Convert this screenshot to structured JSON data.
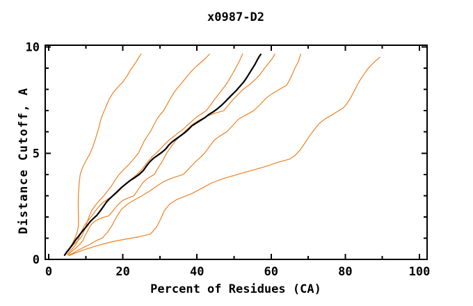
{
  "figure": {
    "background": "#ffffff",
    "axis_color": "#000000"
  },
  "chart_data": {
    "type": "line",
    "title": "x0987-D2",
    "xlabel": "Percent of Residues  (CA)",
    "ylabel": "Distance Cutoff, A",
    "xlim": [
      0,
      100
    ],
    "ylim": [
      0,
      10
    ],
    "x_major_ticks": [
      0,
      20,
      40,
      60,
      80,
      100
    ],
    "x_minor_ticks": [
      10,
      30,
      50,
      70,
      90
    ],
    "y_major_ticks": [
      0,
      5,
      10
    ],
    "y_minor_ticks": [
      1,
      2,
      3,
      4,
      6,
      7,
      8,
      9
    ],
    "grid": false,
    "legend": "none",
    "colors": {
      "orange": "#ee8022",
      "black": "#000000"
    },
    "series": [
      {
        "name": "orange-1",
        "color": "#ee8022",
        "width": 1.2,
        "points": [
          [
            4.6,
            0.28
          ],
          [
            5.4,
            0.45
          ],
          [
            6.1,
            0.62
          ],
          [
            6.7,
            0.85
          ],
          [
            7.2,
            1.05
          ],
          [
            7.7,
            1.3
          ],
          [
            8.0,
            1.55
          ],
          [
            8.05,
            1.85
          ],
          [
            8.0,
            2.2
          ],
          [
            7.95,
            2.6
          ],
          [
            8.0,
            3.0
          ],
          [
            8.15,
            3.4
          ],
          [
            8.3,
            3.7
          ],
          [
            8.5,
            4.0
          ],
          [
            9.2,
            4.35
          ],
          [
            10.1,
            4.65
          ],
          [
            11.2,
            5.0
          ],
          [
            11.9,
            5.3
          ],
          [
            12.5,
            5.6
          ],
          [
            13.1,
            5.95
          ],
          [
            13.6,
            6.25
          ],
          [
            14.0,
            6.55
          ],
          [
            14.5,
            6.8
          ],
          [
            15.0,
            7.0
          ],
          [
            15.7,
            7.3
          ],
          [
            16.5,
            7.6
          ],
          [
            17.6,
            7.9
          ],
          [
            18.9,
            8.15
          ],
          [
            20.0,
            8.35
          ],
          [
            21.2,
            8.65
          ],
          [
            22.2,
            8.95
          ],
          [
            23.2,
            9.2
          ],
          [
            24.1,
            9.45
          ],
          [
            24.9,
            9.67
          ]
        ]
      },
      {
        "name": "orange-2",
        "color": "#ee8022",
        "width": 1.2,
        "points": [
          [
            4.8,
            0.3
          ],
          [
            5.7,
            0.5
          ],
          [
            6.6,
            0.68
          ],
          [
            7.5,
            0.82
          ],
          [
            8.3,
            0.95
          ],
          [
            9.0,
            1.12
          ],
          [
            9.7,
            1.4
          ],
          [
            10.3,
            1.72
          ],
          [
            10.9,
            2.02
          ],
          [
            11.6,
            2.3
          ],
          [
            12.6,
            2.55
          ],
          [
            13.7,
            2.78
          ],
          [
            14.9,
            3.0
          ],
          [
            16.0,
            3.25
          ],
          [
            17.1,
            3.5
          ],
          [
            18.0,
            3.75
          ],
          [
            19.0,
            4.0
          ],
          [
            20.2,
            4.22
          ],
          [
            21.5,
            4.45
          ],
          [
            22.8,
            4.7
          ],
          [
            24.2,
            5.0
          ],
          [
            25.0,
            5.3
          ],
          [
            25.8,
            5.58
          ],
          [
            26.6,
            5.8
          ],
          [
            27.4,
            6.0
          ],
          [
            28.3,
            6.3
          ],
          [
            29.2,
            6.6
          ],
          [
            30.0,
            6.8
          ],
          [
            31.0,
            7.0
          ],
          [
            31.9,
            7.28
          ],
          [
            32.9,
            7.6
          ],
          [
            33.9,
            7.88
          ],
          [
            34.9,
            8.1
          ],
          [
            35.9,
            8.3
          ],
          [
            37.0,
            8.55
          ],
          [
            38.2,
            8.8
          ],
          [
            39.6,
            9.05
          ],
          [
            41.1,
            9.28
          ],
          [
            42.4,
            9.48
          ],
          [
            43.4,
            9.67
          ]
        ]
      },
      {
        "name": "orange-3",
        "color": "#ee8022",
        "width": 1.2,
        "points": [
          [
            5.0,
            0.25
          ],
          [
            5.9,
            0.42
          ],
          [
            6.8,
            0.58
          ],
          [
            7.6,
            0.78
          ],
          [
            8.1,
            1.0
          ],
          [
            8.8,
            1.3
          ],
          [
            9.6,
            1.58
          ],
          [
            10.4,
            1.78
          ],
          [
            11.2,
            1.95
          ],
          [
            11.9,
            2.1
          ],
          [
            12.9,
            2.35
          ],
          [
            14.1,
            2.6
          ],
          [
            15.6,
            2.8
          ],
          [
            17.0,
            2.95
          ],
          [
            18.1,
            3.08
          ],
          [
            19.4,
            3.3
          ],
          [
            20.9,
            3.58
          ],
          [
            22.4,
            3.8
          ],
          [
            23.8,
            4.0
          ],
          [
            25.0,
            4.22
          ],
          [
            26.1,
            4.45
          ],
          [
            27.0,
            4.65
          ],
          [
            28.0,
            4.85
          ],
          [
            29.0,
            5.0
          ],
          [
            30.1,
            5.2
          ],
          [
            31.3,
            5.42
          ],
          [
            32.5,
            5.62
          ],
          [
            33.7,
            5.78
          ],
          [
            34.9,
            5.95
          ],
          [
            36.1,
            6.1
          ],
          [
            37.3,
            6.3
          ],
          [
            38.6,
            6.5
          ],
          [
            39.9,
            6.7
          ],
          [
            41.2,
            6.85
          ],
          [
            42.5,
            7.0
          ],
          [
            43.6,
            7.25
          ],
          [
            44.6,
            7.5
          ],
          [
            45.6,
            7.72
          ],
          [
            46.6,
            7.95
          ],
          [
            47.5,
            8.15
          ],
          [
            48.3,
            8.35
          ],
          [
            49.2,
            8.62
          ],
          [
            50.1,
            8.9
          ],
          [
            51.2,
            9.25
          ],
          [
            52.3,
            9.67
          ]
        ]
      },
      {
        "name": "orange-4",
        "color": "#ee8022",
        "width": 1.2,
        "points": [
          [
            5.2,
            0.22
          ],
          [
            6.2,
            0.38
          ],
          [
            7.2,
            0.52
          ],
          [
            8.2,
            0.68
          ],
          [
            9.2,
            0.88
          ],
          [
            9.8,
            1.1
          ],
          [
            10.5,
            1.35
          ],
          [
            11.3,
            1.6
          ],
          [
            12.3,
            1.78
          ],
          [
            13.5,
            1.9
          ],
          [
            14.8,
            1.98
          ],
          [
            16.2,
            2.05
          ],
          [
            17.4,
            2.3
          ],
          [
            18.7,
            2.58
          ],
          [
            20.0,
            2.78
          ],
          [
            21.5,
            2.9
          ],
          [
            23.0,
            3.0
          ],
          [
            24.2,
            3.3
          ],
          [
            25.3,
            3.58
          ],
          [
            26.4,
            3.78
          ],
          [
            27.5,
            3.9
          ],
          [
            28.5,
            4.0
          ],
          [
            29.5,
            4.3
          ],
          [
            30.6,
            4.6
          ],
          [
            31.8,
            5.0
          ],
          [
            33.0,
            5.3
          ],
          [
            34.3,
            5.6
          ],
          [
            35.7,
            5.85
          ],
          [
            37.2,
            6.1
          ],
          [
            38.8,
            6.35
          ],
          [
            40.5,
            6.55
          ],
          [
            42.5,
            6.72
          ],
          [
            44.8,
            6.88
          ],
          [
            47.2,
            7.0
          ],
          [
            48.4,
            7.25
          ],
          [
            49.6,
            7.5
          ],
          [
            51.0,
            7.75
          ],
          [
            52.4,
            8.0
          ],
          [
            54.0,
            8.2
          ],
          [
            55.6,
            8.45
          ],
          [
            57.0,
            8.7
          ],
          [
            58.2,
            9.0
          ],
          [
            59.4,
            9.25
          ],
          [
            60.3,
            9.45
          ],
          [
            61.0,
            9.67
          ]
        ]
      },
      {
        "name": "orange-5",
        "color": "#ee8022",
        "width": 1.2,
        "points": [
          [
            5.4,
            0.2
          ],
          [
            6.6,
            0.3
          ],
          [
            8.0,
            0.44
          ],
          [
            9.6,
            0.58
          ],
          [
            11.2,
            0.72
          ],
          [
            12.8,
            0.88
          ],
          [
            14.4,
            1.0
          ],
          [
            15.9,
            1.28
          ],
          [
            17.1,
            1.6
          ],
          [
            18.3,
            2.0
          ],
          [
            19.6,
            2.35
          ],
          [
            21.2,
            2.6
          ],
          [
            23.1,
            2.8
          ],
          [
            25.2,
            3.0
          ],
          [
            27.1,
            3.2
          ],
          [
            29.1,
            3.45
          ],
          [
            31.2,
            3.68
          ],
          [
            33.6,
            3.85
          ],
          [
            36.3,
            4.0
          ],
          [
            38.0,
            4.3
          ],
          [
            39.6,
            4.6
          ],
          [
            40.9,
            4.8
          ],
          [
            42.0,
            5.0
          ],
          [
            43.3,
            5.3
          ],
          [
            44.6,
            5.6
          ],
          [
            46.1,
            5.8
          ],
          [
            48.0,
            6.0
          ],
          [
            49.6,
            6.3
          ],
          [
            51.2,
            6.6
          ],
          [
            53.2,
            6.8
          ],
          [
            55.3,
            7.0
          ],
          [
            57.1,
            7.3
          ],
          [
            58.7,
            7.6
          ],
          [
            60.3,
            7.8
          ],
          [
            62.2,
            8.0
          ],
          [
            64.2,
            8.2
          ],
          [
            65.4,
            8.6
          ],
          [
            66.4,
            9.0
          ],
          [
            67.3,
            9.3
          ],
          [
            68.0,
            9.67
          ]
        ]
      },
      {
        "name": "orange-6",
        "color": "#ee8022",
        "width": 1.2,
        "points": [
          [
            5.6,
            0.18
          ],
          [
            7.2,
            0.3
          ],
          [
            9.3,
            0.44
          ],
          [
            11.8,
            0.58
          ],
          [
            14.6,
            0.72
          ],
          [
            17.6,
            0.85
          ],
          [
            20.6,
            0.95
          ],
          [
            24.0,
            1.05
          ],
          [
            27.5,
            1.2
          ],
          [
            29.0,
            1.5
          ],
          [
            30.2,
            1.9
          ],
          [
            31.2,
            2.3
          ],
          [
            32.6,
            2.6
          ],
          [
            34.6,
            2.82
          ],
          [
            36.6,
            2.96
          ],
          [
            38.6,
            3.1
          ],
          [
            41.3,
            3.35
          ],
          [
            44.0,
            3.6
          ],
          [
            47.0,
            3.8
          ],
          [
            50.0,
            3.95
          ],
          [
            53.0,
            4.1
          ],
          [
            56.0,
            4.25
          ],
          [
            59.0,
            4.4
          ],
          [
            62.0,
            4.58
          ],
          [
            65.0,
            4.72
          ],
          [
            66.5,
            4.9
          ],
          [
            67.8,
            5.15
          ],
          [
            69.0,
            5.45
          ],
          [
            70.3,
            5.8
          ],
          [
            71.6,
            6.1
          ],
          [
            73.0,
            6.4
          ],
          [
            74.6,
            6.62
          ],
          [
            76.6,
            6.82
          ],
          [
            78.2,
            7.0
          ],
          [
            79.4,
            7.12
          ],
          [
            80.5,
            7.35
          ],
          [
            81.3,
            7.56
          ],
          [
            82.2,
            7.85
          ],
          [
            83.2,
            8.2
          ],
          [
            84.2,
            8.5
          ],
          [
            85.0,
            8.7
          ],
          [
            86.2,
            9.0
          ],
          [
            87.3,
            9.2
          ],
          [
            88.4,
            9.38
          ],
          [
            89.3,
            9.52
          ]
        ]
      },
      {
        "name": "black",
        "color": "#000000",
        "width": 2.2,
        "points": [
          [
            4.3,
            0.2
          ],
          [
            5.0,
            0.38
          ],
          [
            5.8,
            0.55
          ],
          [
            6.6,
            0.75
          ],
          [
            7.4,
            0.95
          ],
          [
            8.2,
            1.12
          ],
          [
            9.2,
            1.35
          ],
          [
            10.2,
            1.55
          ],
          [
            11.2,
            1.78
          ],
          [
            12.2,
            1.95
          ],
          [
            13.0,
            2.08
          ],
          [
            13.9,
            2.28
          ],
          [
            14.8,
            2.5
          ],
          [
            15.6,
            2.7
          ],
          [
            16.4,
            2.85
          ],
          [
            17.3,
            3.0
          ],
          [
            18.4,
            3.18
          ],
          [
            19.6,
            3.38
          ],
          [
            20.8,
            3.55
          ],
          [
            22.0,
            3.72
          ],
          [
            23.2,
            3.85
          ],
          [
            24.4,
            4.0
          ],
          [
            25.5,
            4.18
          ],
          [
            26.4,
            4.4
          ],
          [
            27.3,
            4.6
          ],
          [
            28.2,
            4.75
          ],
          [
            29.4,
            4.9
          ],
          [
            30.6,
            5.05
          ],
          [
            31.6,
            5.2
          ],
          [
            32.4,
            5.38
          ],
          [
            33.2,
            5.52
          ],
          [
            34.2,
            5.65
          ],
          [
            35.4,
            5.8
          ],
          [
            36.6,
            5.95
          ],
          [
            37.6,
            6.1
          ],
          [
            38.6,
            6.28
          ],
          [
            39.8,
            6.42
          ],
          [
            41.0,
            6.55
          ],
          [
            42.2,
            6.68
          ],
          [
            43.2,
            6.82
          ],
          [
            44.4,
            6.95
          ],
          [
            45.6,
            7.1
          ],
          [
            46.6,
            7.25
          ],
          [
            47.6,
            7.42
          ],
          [
            48.6,
            7.6
          ],
          [
            49.6,
            7.78
          ],
          [
            50.6,
            7.95
          ],
          [
            51.6,
            8.15
          ],
          [
            52.6,
            8.35
          ],
          [
            53.4,
            8.55
          ],
          [
            54.2,
            8.78
          ],
          [
            55.0,
            9.0
          ],
          [
            55.7,
            9.2
          ],
          [
            56.3,
            9.4
          ],
          [
            56.8,
            9.55
          ],
          [
            57.2,
            9.65
          ]
        ]
      }
    ]
  }
}
